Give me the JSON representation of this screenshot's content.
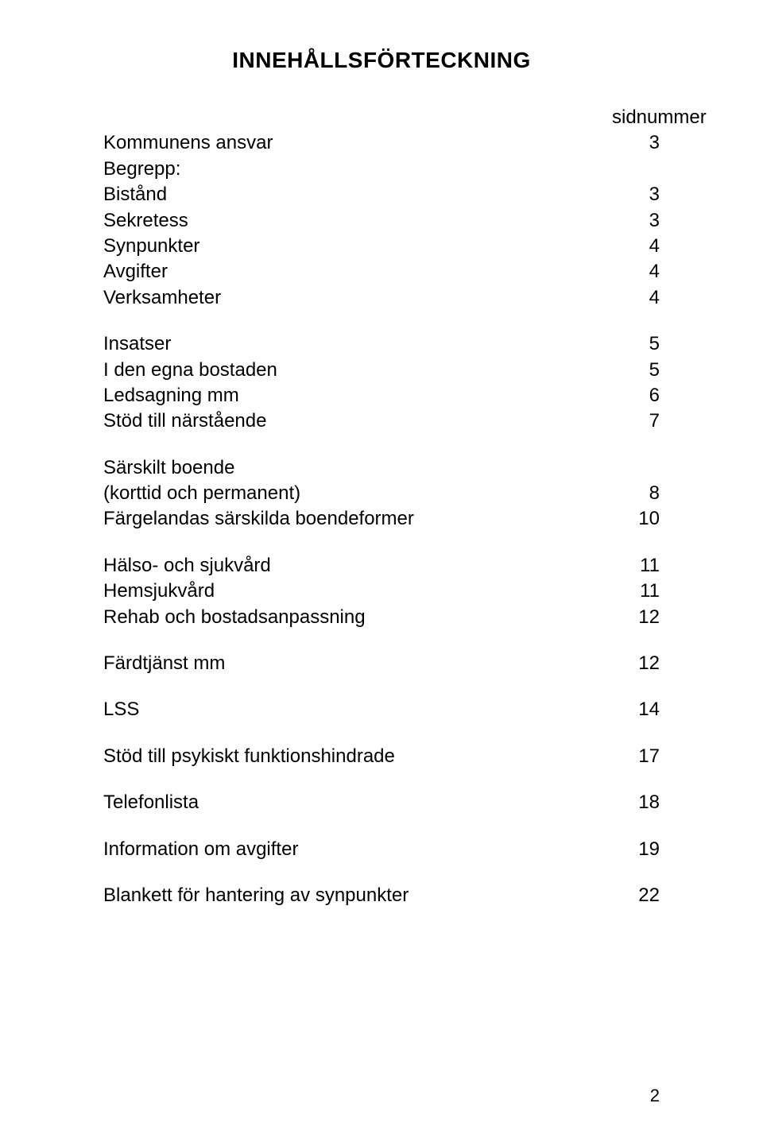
{
  "title": "INNEHÅLLSFÖRTECKNING",
  "header_label": "sidnummer",
  "groups": [
    [
      {
        "label": "Kommunens ansvar",
        "page": "3"
      },
      {
        "label": "Begrepp:",
        "page": ""
      },
      {
        "label": "Bistånd",
        "page": "3"
      },
      {
        "label": "Sekretess",
        "page": "3"
      },
      {
        "label": "Synpunkter",
        "page": "4"
      },
      {
        "label": "Avgifter",
        "page": "4"
      },
      {
        "label": "Verksamheter",
        "page": "4"
      }
    ],
    [
      {
        "label": "Insatser",
        "page": "5"
      },
      {
        "label": "I den egna bostaden",
        "page": "5"
      },
      {
        "label": "Ledsagning mm",
        "page": "6"
      },
      {
        "label": "Stöd till närstående",
        "page": "7"
      }
    ],
    [
      {
        "label": "Särskilt boende",
        "page": ""
      },
      {
        "label": "(korttid och permanent)",
        "page": "8"
      },
      {
        "label": "Färgelandas särskilda boendeformer",
        "page": "10"
      }
    ],
    [
      {
        "label": "Hälso- och sjukvård",
        "page": "11"
      },
      {
        "label": "Hemsjukvård",
        "page": "11"
      },
      {
        "label": "Rehab och bostadsanpassning",
        "page": "12"
      }
    ],
    [
      {
        "label": "Färdtjänst mm",
        "page": "12"
      }
    ],
    [
      {
        "label": "LSS",
        "page": "14"
      }
    ],
    [
      {
        "label": "Stöd till psykiskt funktionshindrade",
        "page": "17"
      }
    ],
    [
      {
        "label": "Telefonlista",
        "page": "18"
      }
    ],
    [
      {
        "label": "Information om avgifter",
        "page": "19"
      }
    ],
    [
      {
        "label": "Blankett för hantering av synpunkter",
        "page": "22"
      }
    ]
  ],
  "page_number": "2"
}
